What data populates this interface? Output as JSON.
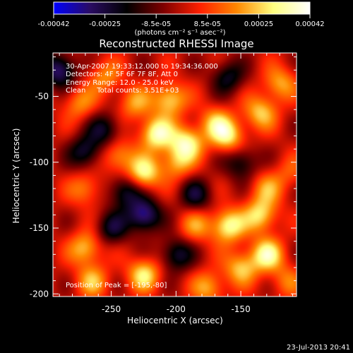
{
  "colorbar": {
    "ticks": [
      "-0.00042",
      "-0.00025",
      "-8.5e-05",
      "8.5e-05",
      "0.00025",
      "0.00042"
    ],
    "unit_text": "(photons cm⁻² s⁻¹ asec⁻²)",
    "colormap": [
      "#0000ff",
      "#2a0c62",
      "#000000",
      "#7f0000",
      "#ff2000",
      "#ff8800",
      "#ffff80",
      "#ffffff"
    ]
  },
  "title": "Reconstructed RHESSI Image",
  "annotations": {
    "time_range": "30-Apr-2007 19:33:12.000 to 19:34:36.000",
    "detectors": "Detectors: 4F 5F 6F 7F 8F, Att 0",
    "energy_range": "Energy Range: 12.0 - 25.0 keV",
    "clean_counts": "Clean     Total counts: 3.51E+03",
    "peak_position": "Position of Peak = [-195,-80]"
  },
  "axes": {
    "xlabel": "Heliocentric X (arcsec)",
    "ylabel": "Heliocentric Y (arcsec)",
    "xticks": [
      "-250",
      "-200",
      "-150"
    ],
    "yticks": [
      "-50",
      "-100",
      "-150",
      "-200"
    ],
    "xrange": [
      -295,
      -107
    ],
    "yrange": [
      -202,
      -17
    ]
  },
  "image_data": {
    "type": "heatmap",
    "sources": [
      {
        "x": -290,
        "y": -30,
        "v": -0.9
      },
      {
        "x": -275,
        "y": -55,
        "v": 0.5
      },
      {
        "x": -232,
        "y": -55,
        "v": 0.55
      },
      {
        "x": -205,
        "y": -52,
        "v": 0.8
      },
      {
        "x": -215,
        "y": -78,
        "v": 1.0
      },
      {
        "x": -192,
        "y": -85,
        "v": 0.9
      },
      {
        "x": -170,
        "y": -70,
        "v": 0.6
      },
      {
        "x": -160,
        "y": -80,
        "v": 0.8
      },
      {
        "x": -135,
        "y": -62,
        "v": 0.7
      },
      {
        "x": -255,
        "y": -75,
        "v": -0.6
      },
      {
        "x": -245,
        "y": -95,
        "v": 0.6
      },
      {
        "x": -270,
        "y": -92,
        "v": -0.7
      },
      {
        "x": -225,
        "y": -108,
        "v": 0.9
      },
      {
        "x": -200,
        "y": -100,
        "v": 0.6
      },
      {
        "x": -185,
        "y": -125,
        "v": -0.6
      },
      {
        "x": -240,
        "y": -122,
        "v": -0.7
      },
      {
        "x": -270,
        "y": -120,
        "v": 0.5
      },
      {
        "x": -150,
        "y": -100,
        "v": -0.6
      },
      {
        "x": -130,
        "y": -120,
        "v": 0.5
      },
      {
        "x": -112,
        "y": -108,
        "v": 0.3
      },
      {
        "x": -225,
        "y": -140,
        "v": -1.0
      },
      {
        "x": -160,
        "y": -148,
        "v": 0.95
      },
      {
        "x": -135,
        "y": -140,
        "v": 0.8
      },
      {
        "x": -185,
        "y": -148,
        "v": 0.5
      },
      {
        "x": -270,
        "y": -165,
        "v": 0.7
      },
      {
        "x": -250,
        "y": -150,
        "v": -0.6
      },
      {
        "x": -200,
        "y": -170,
        "v": -0.7
      },
      {
        "x": -150,
        "y": -180,
        "v": 0.7
      },
      {
        "x": -130,
        "y": -170,
        "v": 0.9
      },
      {
        "x": -225,
        "y": -185,
        "v": 0.8
      },
      {
        "x": -265,
        "y": -190,
        "v": 0.6
      },
      {
        "x": -175,
        "y": -195,
        "v": 0.6
      },
      {
        "x": -115,
        "y": -190,
        "v": 0.4
      },
      {
        "x": -120,
        "y": -40,
        "v": 0.6
      },
      {
        "x": -160,
        "y": -35,
        "v": -0.6
      },
      {
        "x": -255,
        "y": -35,
        "v": 0.5
      }
    ]
  },
  "timestamp": "23-Jul-2013 20:41"
}
